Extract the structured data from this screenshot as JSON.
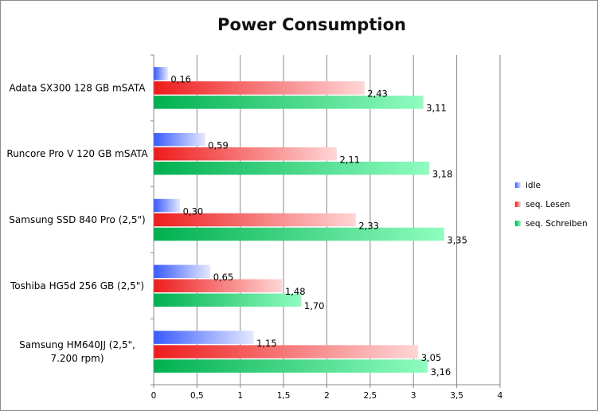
{
  "chart_data": {
    "type": "bar",
    "orientation": "horizontal",
    "title": "Power Consumption",
    "xlabel": "",
    "ylabel": "",
    "xlim": [
      0,
      4
    ],
    "xticks": [
      "0",
      "0,5",
      "1",
      "1,5",
      "2",
      "2,5",
      "3",
      "3,5",
      "4"
    ],
    "grid": "vertical",
    "legend_position": "right",
    "categories": [
      [
        "Adata SX300 128 GB mSATA"
      ],
      [
        "Runcore Pro V 120 GB mSATA"
      ],
      [
        "Samsung SSD 840 Pro (2,5\")"
      ],
      [
        "Toshiba HG5d 256 GB (2,5\")"
      ],
      [
        "Samsung HM640JJ (2,5\",",
        "7.200 rpm)"
      ]
    ],
    "series": [
      {
        "name": "idle",
        "values": [
          0.16,
          0.59,
          0.3,
          0.65,
          1.15
        ],
        "labels": [
          "0,16",
          "0,59",
          "0,30",
          "0,65",
          "1,15"
        ],
        "color_start": "#3a5bff",
        "color_end": "#e4e9ff"
      },
      {
        "name": "seq. Lesen",
        "values": [
          2.43,
          2.11,
          2.33,
          1.48,
          3.05
        ],
        "labels": [
          "2,43",
          "2,11",
          "2,33",
          "1,48",
          "3,05"
        ],
        "color_start": "#ee1c1c",
        "color_end": "#ffd6d6"
      },
      {
        "name": "seq. Schreiben",
        "values": [
          3.11,
          3.18,
          3.35,
          1.7,
          3.16
        ],
        "labels": [
          "3,11",
          "3,18",
          "3,35",
          "1,70",
          "3,16"
        ],
        "color_start": "#00b050",
        "color_end": "#8ffdc0"
      }
    ]
  }
}
